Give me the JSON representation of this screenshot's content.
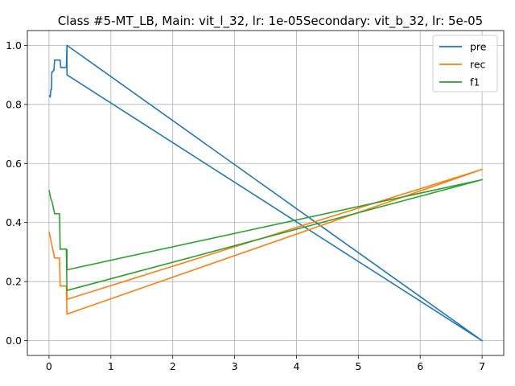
{
  "chart_data": {
    "type": "line",
    "title": "Class #5-MT_LB, Main: vit_l_32, lr: 1e-05Secondary: vit_b_32, lr: 5e-05",
    "xlabel": "",
    "ylabel": "",
    "xlim": [
      -0.35,
      7.35
    ],
    "ylim": [
      -0.05,
      1.05
    ],
    "xticks": [
      0,
      1,
      2,
      3,
      4,
      5,
      6,
      7
    ],
    "yticks": [
      0.0,
      0.2,
      0.4,
      0.6,
      0.8,
      1.0
    ],
    "xtick_labels": [
      "0",
      "1",
      "2",
      "3",
      "4",
      "5",
      "6",
      "7"
    ],
    "ytick_labels": [
      "0.0",
      "0.2",
      "0.4",
      "0.6",
      "0.8",
      "1.0"
    ],
    "grid": true,
    "legend_position": "top-right",
    "series": [
      {
        "name": "pre",
        "color": "#1f77b4",
        "points": [
          [
            0.0,
            0.83
          ],
          [
            0.01,
            0.83
          ],
          [
            0.02,
            0.825
          ],
          [
            0.03,
            0.85
          ],
          [
            0.04,
            0.85
          ],
          [
            0.045,
            0.91
          ],
          [
            0.06,
            0.91
          ],
          [
            0.07,
            0.915
          ],
          [
            0.08,
            0.915
          ],
          [
            0.09,
            0.95
          ],
          [
            0.18,
            0.95
          ],
          [
            0.19,
            0.925
          ],
          [
            0.28,
            0.925
          ],
          [
            0.29,
            1.0
          ],
          [
            7.0,
            0.0
          ],
          [
            0.29,
            0.9
          ],
          [
            0.29,
            1.0
          ]
        ]
      },
      {
        "name": "rec",
        "color": "#ff7f0e",
        "points": [
          [
            0.0,
            0.37
          ],
          [
            0.01,
            0.36
          ],
          [
            0.03,
            0.34
          ],
          [
            0.05,
            0.32
          ],
          [
            0.07,
            0.3
          ],
          [
            0.09,
            0.28
          ],
          [
            0.17,
            0.28
          ],
          [
            0.18,
            0.185
          ],
          [
            0.28,
            0.185
          ],
          [
            0.29,
            0.09
          ],
          [
            7.0,
            0.58
          ],
          [
            0.29,
            0.14
          ],
          [
            0.29,
            0.185
          ]
        ]
      },
      {
        "name": "f1",
        "color": "#2ca02c",
        "points": [
          [
            0.0,
            0.51
          ],
          [
            0.01,
            0.5
          ],
          [
            0.03,
            0.48
          ],
          [
            0.05,
            0.47
          ],
          [
            0.07,
            0.45
          ],
          [
            0.09,
            0.43
          ],
          [
            0.17,
            0.43
          ],
          [
            0.18,
            0.31
          ],
          [
            0.28,
            0.31
          ],
          [
            0.29,
            0.17
          ],
          [
            7.0,
            0.545
          ],
          [
            0.29,
            0.24
          ],
          [
            0.29,
            0.31
          ]
        ]
      }
    ]
  }
}
